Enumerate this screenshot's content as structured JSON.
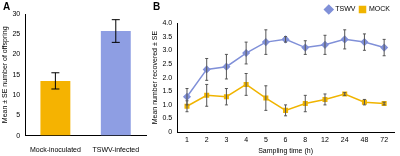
{
  "chart_data": [
    {
      "type": "bar",
      "title": "A",
      "categories": [
        "Mock-inoculated",
        "TSWV-infected"
      ],
      "values": [
        13.5,
        25.8
      ],
      "errors": [
        2.0,
        2.8
      ],
      "colors": [
        "#f5b301",
        "#8e9ee3"
      ],
      "y_label": "Mean ± SE number of offspring",
      "ylim": [
        0,
        30
      ],
      "yticks": [
        0,
        5,
        10,
        15,
        20,
        25,
        30
      ],
      "grid": false
    },
    {
      "type": "line",
      "title": "B",
      "categories": [
        "1",
        "2",
        "3",
        "4",
        "5",
        "6",
        "8",
        "12",
        "24",
        "48",
        "72"
      ],
      "series": [
        {
          "name": "TSWV",
          "color": "#8090d8",
          "marker": "diamond",
          "values": [
            1.3,
            2.3,
            2.4,
            2.9,
            3.3,
            3.4,
            3.1,
            3.2,
            3.4,
            3.3,
            3.1
          ],
          "errors": [
            0.3,
            0.4,
            0.45,
            0.4,
            0.45,
            0.1,
            0.25,
            0.35,
            0.35,
            0.3,
            0.3
          ]
        },
        {
          "name": "MOCK",
          "color": "#f0b400",
          "marker": "square",
          "values": [
            0.95,
            1.35,
            1.3,
            1.75,
            1.25,
            0.8,
            1.05,
            1.2,
            1.4,
            1.1,
            1.05
          ],
          "errors": [
            0.2,
            0.4,
            0.3,
            0.4,
            0.45,
            0.2,
            0.3,
            0.2,
            0.05,
            0.1,
            0.05
          ]
        }
      ],
      "x_label": "Sampling time (h)",
      "y_label": "Mean number recovered ± SE",
      "ylim": [
        0,
        4
      ],
      "yticks": [
        0,
        0.5,
        {
          "value": 1,
          "label": "1.0"
        },
        1.5,
        {
          "value": 2,
          "label": "2.0"
        },
        2.5,
        {
          "value": 3,
          "label": "3.0"
        },
        3.5,
        {
          "value": 4,
          "label": "4.0"
        }
      ],
      "legend": "top right",
      "grid": false
    }
  ]
}
